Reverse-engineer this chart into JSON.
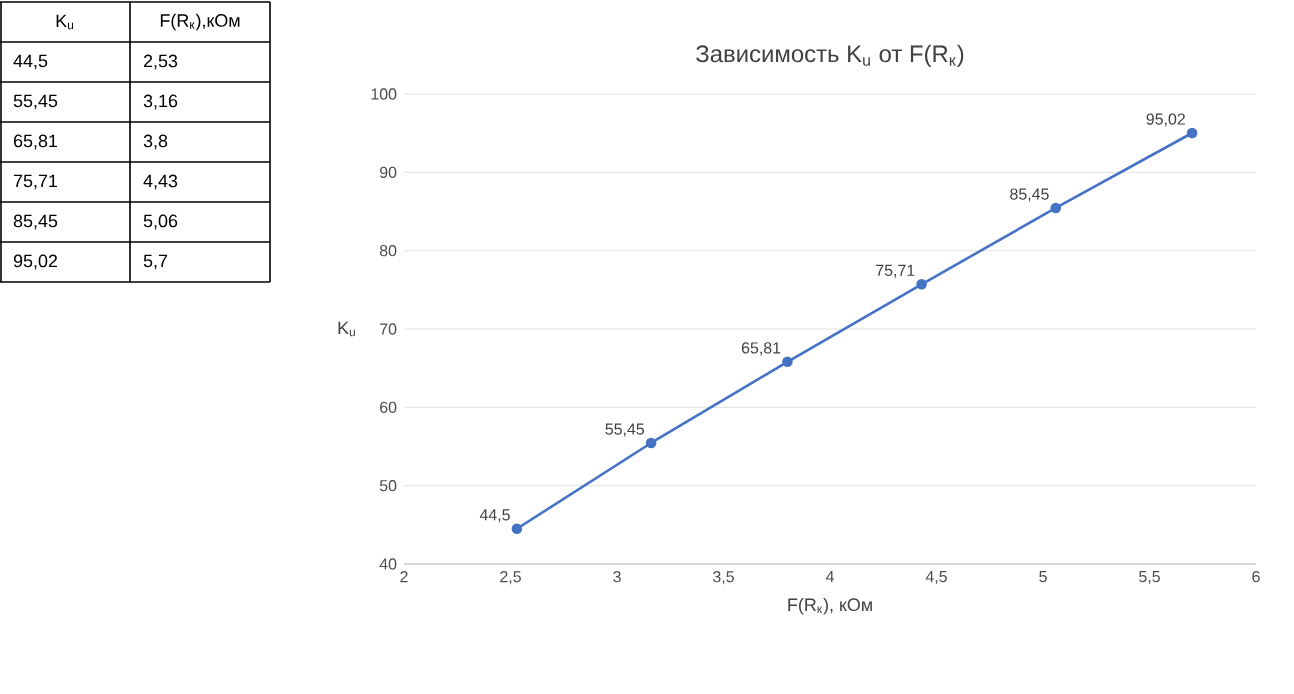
{
  "chart_data": {
    "type": "line",
    "title": "Зависимость K$_{u}$ от F(R$_{к}$)",
    "xlabel": "F(R$_{к}$), кОм",
    "ylabel": "K$_{u}$",
    "annotations": [
      "K$_{u}$",
      "F(R$_{к}$),кОм",
      "2,53",
      "3,16",
      "3,8",
      "4,43",
      "5,06",
      "5,7"
    ],
    "x": [
      2.53,
      3.16,
      3.8,
      4.43,
      5.06,
      5.7
    ],
    "values": [
      44.5,
      55.45,
      65.81,
      75.71,
      85.45,
      95.02
    ],
    "value_labels": [
      "44,5",
      "55,45",
      "65,81",
      "75,71",
      "85,45",
      "95,02"
    ],
    "color": "#4472c4",
    "marker": "circle",
    "line_style": "solid",
    "grid": "y",
    "xlim": [
      2,
      6
    ],
    "ylim": [
      40,
      100
    ],
    "xticks": [
      2,
      {
        "value": 2.5,
        "label": "2,5"
      },
      3,
      {
        "value": 3.5,
        "label": "3,5"
      },
      4,
      {
        "value": 4.5,
        "label": "4,5"
      },
      5,
      {
        "value": 5.5,
        "label": "5,5"
      },
      6
    ],
    "yticks": [
      40,
      50,
      60,
      70,
      80,
      90,
      100
    ]
  }
}
